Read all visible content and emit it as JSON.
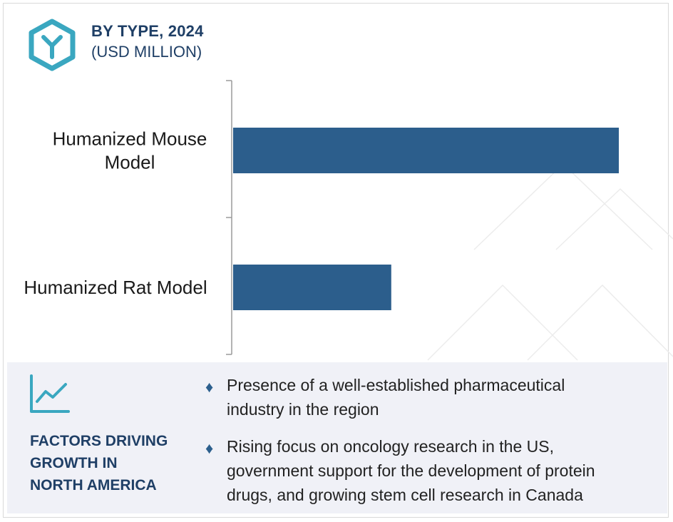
{
  "header": {
    "title": "BY TYPE, 2024",
    "subtitle": "(USD MILLION)",
    "logo_icon": "cube-logo-icon"
  },
  "colors": {
    "bar": "#2c5e8c",
    "title": "#1f3f66",
    "panel_bg": "#f0f1f7",
    "accent": "#3aa7c0"
  },
  "chart_data": {
    "type": "bar",
    "orientation": "horizontal",
    "categories": [
      "Humanized Mouse Model",
      "Humanized Rat Model"
    ],
    "category_display": [
      [
        "Humanized Mouse",
        "Model"
      ],
      [
        "Humanized Rat Model"
      ]
    ],
    "values": [
      100,
      41
    ],
    "value_axis_shown": false,
    "grid": false,
    "legend": "none"
  },
  "factors": {
    "icon": "trend-chart-icon",
    "title_lines": [
      "FACTORS DRIVING",
      "GROWTH IN",
      "NORTH AMERICA"
    ],
    "bullets": [
      [
        "Presence of a well-established pharmaceutical",
        "industry in the region"
      ],
      [
        "Rising focus on oncology research in the US,",
        "government support for the development of protein",
        "drugs, and growing stem cell research in Canada"
      ]
    ]
  }
}
